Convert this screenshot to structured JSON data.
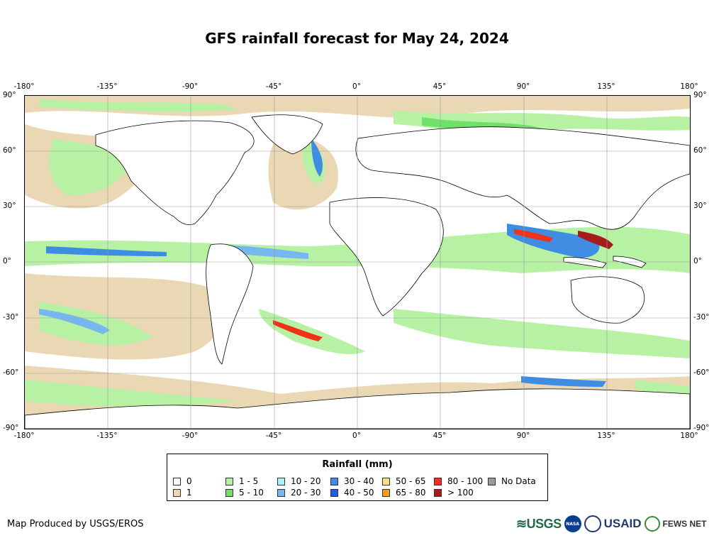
{
  "title": "GFS rainfall forecast for May 24, 2024",
  "axes": {
    "lon_labels": [
      "-180°",
      "-135°",
      "-90°",
      "-45°",
      "0°",
      "45°",
      "90°",
      "135°",
      "180°"
    ],
    "lat_labels": [
      "90°",
      "60°",
      "30°",
      "0°",
      "-30°",
      "-60°",
      "-90°"
    ]
  },
  "legend": {
    "title": "Rainfall (mm)",
    "items": [
      {
        "label": "0",
        "color": "#ffffff"
      },
      {
        "label": "1",
        "color": "#ead8b4"
      },
      {
        "label": "1 - 5",
        "color": "#b7f2a4"
      },
      {
        "label": "5 - 10",
        "color": "#6fe06a"
      },
      {
        "label": "10 - 20",
        "color": "#aef0f7"
      },
      {
        "label": "20 - 30",
        "color": "#76b7f0"
      },
      {
        "label": "30 - 40",
        "color": "#3f8de3"
      },
      {
        "label": "40 - 50",
        "color": "#1f5ed8"
      },
      {
        "label": "50 - 65",
        "color": "#fbe08a"
      },
      {
        "label": "65 - 80",
        "color": "#f59c1a"
      },
      {
        "label": "80 - 100",
        "color": "#f0321a"
      },
      {
        "label": "> 100",
        "color": "#a61c1c"
      },
      {
        "label": "No Data",
        "color": "#9a9a9a"
      }
    ]
  },
  "credit": "Map Produced by USGS/EROS",
  "logos": {
    "usgs": "USGS",
    "nasa": "NASA",
    "usaid": "USAID",
    "fews": "FEWS NET"
  },
  "colors": {
    "grid": "#9a9a9a",
    "coastline": "#000000",
    "land": "#ffffff"
  }
}
